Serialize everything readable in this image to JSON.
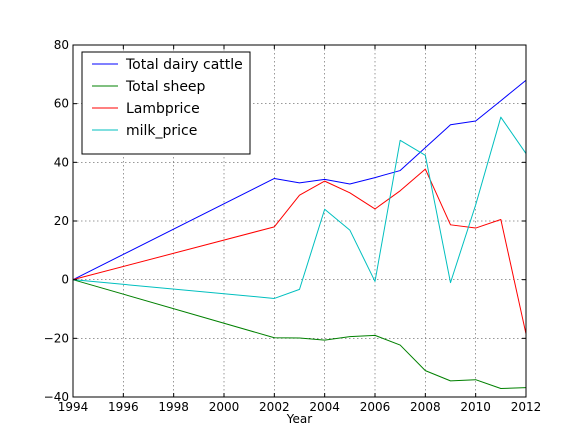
{
  "chart_data": {
    "type": "line",
    "xlabel": "Year",
    "ylabel": "",
    "xlim": [
      1994,
      2012
    ],
    "ylim": [
      -40,
      80
    ],
    "x_ticks": [
      1994,
      1996,
      1998,
      2000,
      2002,
      2004,
      2006,
      2008,
      2010,
      2012
    ],
    "y_ticks": [
      -40,
      -20,
      0,
      20,
      40,
      60,
      80
    ],
    "grid": true,
    "legend_position": "top-left",
    "x": [
      1994,
      2002,
      2003,
      2004,
      2005,
      2006,
      2007,
      2008,
      2009,
      2010,
      2011,
      2012
    ],
    "series": [
      {
        "name": "Total dairy cattle",
        "color": "#0000ff",
        "values": [
          0,
          34.5,
          33,
          34.2,
          32.6,
          34.8,
          37.2,
          45,
          52.8,
          54.1,
          61,
          68
        ]
      },
      {
        "name": "Total sheep",
        "color": "#008000",
        "values": [
          0,
          -19.8,
          -19.9,
          -20.6,
          -19.4,
          -19.0,
          -22.3,
          -31,
          -34.5,
          -34.1,
          -37.1,
          -36.8
        ]
      },
      {
        "name": "Lambprice",
        "color": "#ff0000",
        "values": [
          0,
          18,
          28.8,
          33.6,
          29.6,
          24.1,
          30.3,
          37.7,
          18.7,
          17.6,
          20.5,
          -18.5
        ]
      },
      {
        "name": "milk_price",
        "color": "#00bfbf",
        "values": [
          0,
          -6.4,
          -3.3,
          24,
          16.9,
          -0.6,
          47.5,
          42.4,
          -1,
          25.5,
          55.4,
          43
        ]
      }
    ]
  }
}
